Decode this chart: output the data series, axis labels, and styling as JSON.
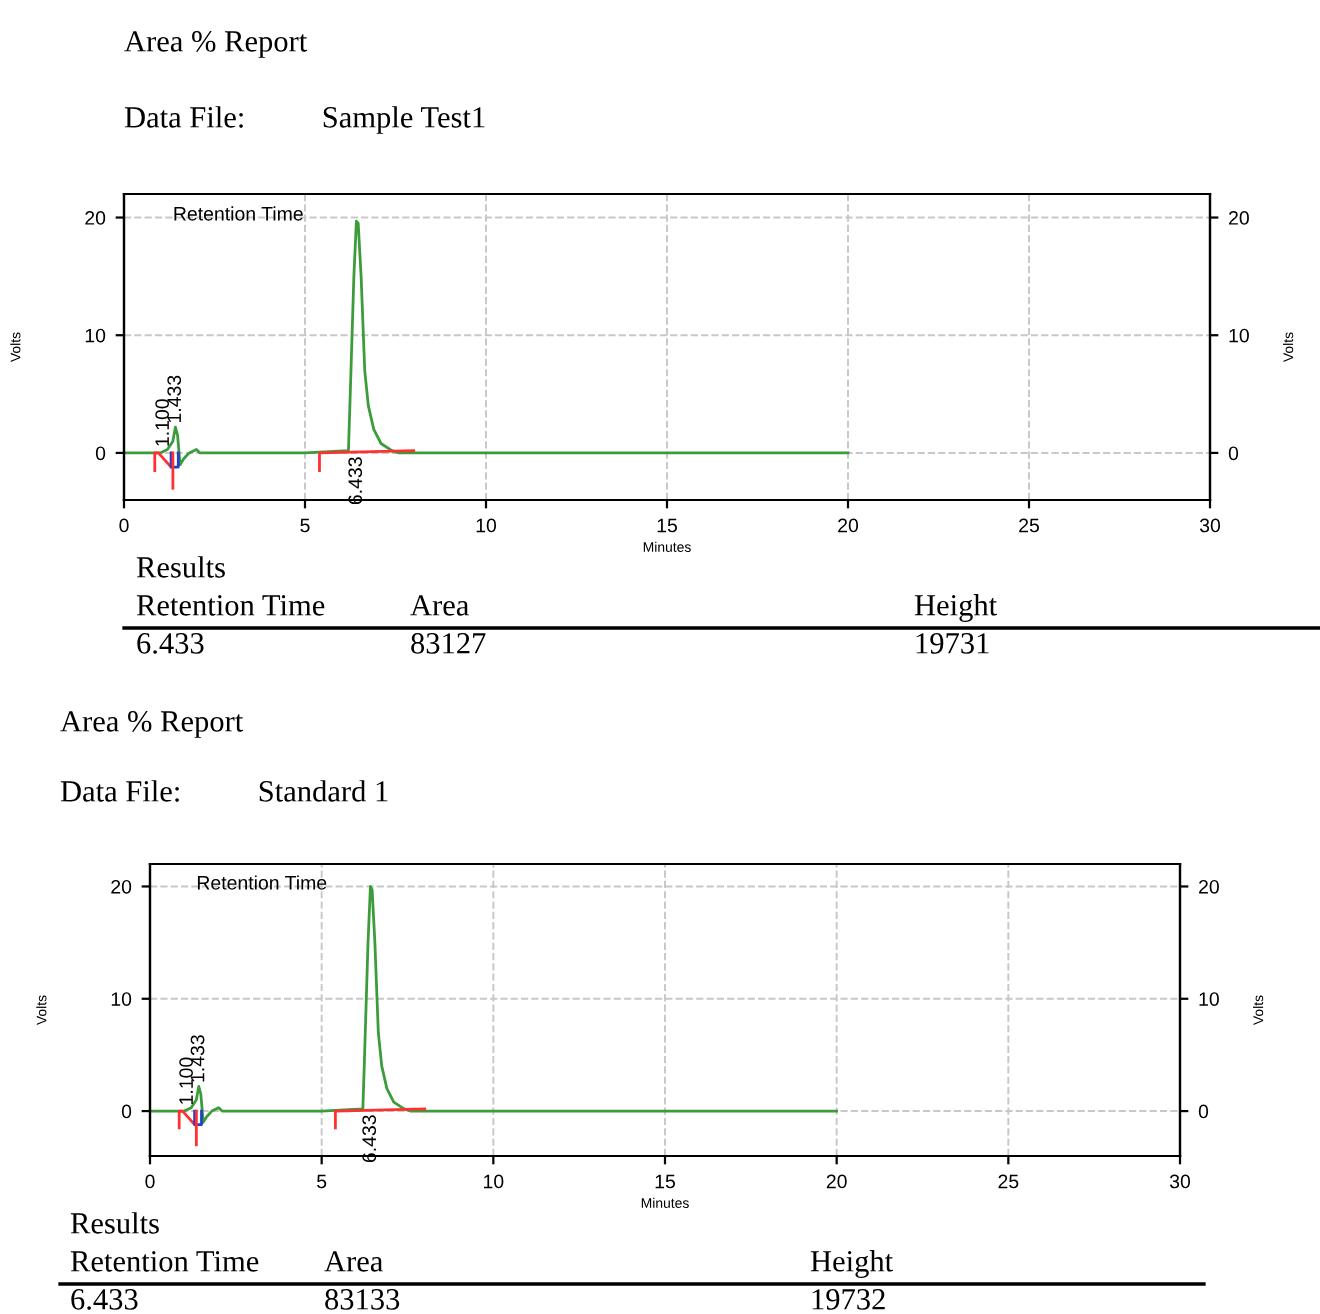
{
  "chart_data": [
    {
      "type": "line",
      "title": "Area % Report",
      "subtitle": "Data File:          Sample Test1",
      "xlabel": "Minutes",
      "ylabel": "Volts",
      "y2label": "Volts",
      "xlim": [
        0,
        30
      ],
      "xticks": [
        0,
        5,
        10,
        15,
        20,
        25,
        30
      ],
      "ylim": [
        -4,
        22
      ],
      "yticks": [
        0,
        10,
        20
      ],
      "y2lim": [
        -4,
        22
      ],
      "y2ticks": [
        0,
        10,
        20
      ],
      "grid": true,
      "marker": "none",
      "line_style": "solid",
      "series": [
        {
          "color": "#3c9c3c",
          "x": [
            0,
            1.0,
            1.2,
            1.35,
            1.42,
            1.48,
            1.55,
            1.65,
            1.8,
            2.0,
            2.1,
            5.0,
            6.2,
            6.25,
            6.35,
            6.42,
            6.47,
            6.55,
            6.65,
            6.75,
            6.9,
            7.1,
            7.4,
            7.6,
            10,
            20
          ],
          "values": [
            0,
            0,
            0.3,
            1.0,
            2.2,
            1.5,
            -1.0,
            -0.5,
            0,
            0.3,
            0,
            0,
            0.2,
            5,
            15,
            19.7,
            19.5,
            15,
            7,
            4,
            2,
            0.8,
            0.2,
            0,
            0,
            0
          ]
        },
        {
          "color": "#ff3030",
          "x": [
            0.85,
            0.85,
            0.95,
            1.3
          ],
          "values": [
            -1.5,
            0,
            0,
            -1.2
          ]
        },
        {
          "color": "#ff3030",
          "x": [
            1.35,
            1.35
          ],
          "values": [
            0,
            -3
          ]
        },
        {
          "color": "#ff3030",
          "x": [
            5.4,
            5.4,
            8.0
          ],
          "values": [
            -1.5,
            0,
            0.2
          ]
        },
        {
          "color": "#1f3fcc",
          "x": [
            1.3,
            1.3,
            1.5,
            1.5
          ],
          "values": [
            0,
            -1.2,
            -1.2,
            0
          ]
        }
      ],
      "annotations": [
        "Retention Time",
        "Results",
        "Retention Time",
        "Area",
        "Height",
        "6.433",
        "83127",
        "19731",
        {
          "text": "1.100",
          "x": 1.1,
          "y": 0.5
        },
        {
          "text": "1.433",
          "x": 1.433,
          "y": 2.5
        },
        {
          "text": "6.433",
          "x": 6.433,
          "y": -0.3
        }
      ]
    },
    {
      "type": "line",
      "title": "Area % Report",
      "subtitle": "Data File:          Standard 1",
      "xlabel": "Minutes",
      "ylabel": "Volts",
      "y2label": "Volts",
      "xlim": [
        0,
        30
      ],
      "xticks": [
        0,
        5,
        10,
        15,
        20,
        25,
        30
      ],
      "ylim": [
        -4,
        22
      ],
      "yticks": [
        0,
        10,
        20
      ],
      "y2lim": [
        -4,
        22
      ],
      "y2ticks": [
        0,
        10,
        20
      ],
      "grid": true,
      "marker": "none",
      "line_style": "solid",
      "series": [
        {
          "color": "#3c9c3c",
          "x": [
            0,
            1.0,
            1.2,
            1.35,
            1.42,
            1.48,
            1.55,
            1.65,
            1.8,
            2.0,
            2.1,
            5.0,
            6.2,
            6.25,
            6.35,
            6.42,
            6.47,
            6.55,
            6.65,
            6.75,
            6.9,
            7.1,
            7.4,
            7.6,
            10,
            20
          ],
          "values": [
            0,
            0,
            0.3,
            1.0,
            2.2,
            1.5,
            -1.0,
            -0.5,
            0,
            0.3,
            0,
            0,
            0.2,
            5,
            15,
            20,
            19.7,
            15,
            7,
            4,
            2,
            0.8,
            0.2,
            0,
            0,
            0
          ]
        },
        {
          "color": "#ff3030",
          "x": [
            0.85,
            0.85,
            0.95,
            1.3
          ],
          "values": [
            -1.5,
            0,
            0,
            -1.2
          ]
        },
        {
          "color": "#ff3030",
          "x": [
            1.35,
            1.35
          ],
          "values": [
            0,
            -3
          ]
        },
        {
          "color": "#ff3030",
          "x": [
            5.4,
            5.4,
            8.0
          ],
          "values": [
            -1.5,
            0,
            0.2
          ]
        },
        {
          "color": "#1f3fcc",
          "x": [
            1.3,
            1.3,
            1.5,
            1.5
          ],
          "values": [
            0,
            -1.2,
            -1.2,
            0
          ]
        }
      ],
      "annotations": [
        "Retention Time",
        "Results",
        "Retention Time",
        "Area",
        "Height",
        "6.433",
        "83133",
        "19732",
        {
          "text": "1.100",
          "x": 1.1,
          "y": 0.5
        },
        {
          "text": "1.433",
          "x": 1.433,
          "y": 2.5
        },
        {
          "text": "6.433",
          "x": 6.433,
          "y": -0.3
        }
      ]
    }
  ]
}
